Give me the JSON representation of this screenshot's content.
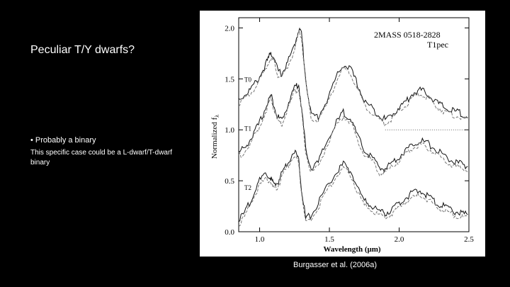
{
  "slide": {
    "title": "Peculiar T/Y dwarfs?",
    "bullet": "• Probably a binary",
    "subtext": "This specific case could be a L-dwarf/T-dwarf binary",
    "caption": "Burgasser et al. (2006a)"
  },
  "figure": {
    "object_label": "2MASS 0518-2828",
    "type_label": "T1pec",
    "ylabel": "Normalized f",
    "ylabel_sub": "λ",
    "xlabel": "Wavelength (μm)",
    "chart_data": {
      "type": "line",
      "xlim": [
        0.85,
        2.5
      ],
      "ylim": [
        0.0,
        2.1
      ],
      "x_ticks": [
        "1.0",
        "1.5",
        "2.0",
        "2.5"
      ],
      "y_ticks": [
        "0.0",
        "0.5",
        "1.0",
        "1.5",
        "2.0"
      ],
      "spectra": [
        {
          "name": "T0",
          "offset": 1.0,
          "x": [
            0.85,
            0.9,
            0.95,
            1.0,
            1.05,
            1.08,
            1.1,
            1.13,
            1.16,
            1.2,
            1.25,
            1.28,
            1.3,
            1.33,
            1.37,
            1.42,
            1.48,
            1.55,
            1.6,
            1.65,
            1.7,
            1.75,
            1.8,
            1.86,
            1.9,
            1.95,
            2.0,
            2.05,
            2.1,
            2.15,
            2.2,
            2.25,
            2.3,
            2.35,
            2.4,
            2.45,
            2.5
          ],
          "y": [
            0.3,
            0.35,
            0.42,
            0.52,
            0.66,
            0.75,
            0.72,
            0.58,
            0.55,
            0.66,
            0.82,
            0.99,
            0.95,
            0.5,
            0.14,
            0.13,
            0.28,
            0.52,
            0.64,
            0.6,
            0.45,
            0.28,
            0.22,
            0.14,
            0.1,
            0.15,
            0.22,
            0.28,
            0.36,
            0.39,
            0.36,
            0.29,
            0.24,
            0.2,
            0.18,
            0.16,
            0.13
          ]
        },
        {
          "name": "T1",
          "offset": 0.52,
          "x": [
            0.85,
            0.9,
            0.95,
            1.0,
            1.05,
            1.08,
            1.1,
            1.13,
            1.16,
            1.2,
            1.25,
            1.28,
            1.3,
            1.33,
            1.37,
            1.42,
            1.48,
            1.55,
            1.6,
            1.65,
            1.7,
            1.75,
            1.8,
            1.86,
            1.9,
            1.95,
            2.0,
            2.05,
            2.1,
            2.15,
            2.2,
            2.25,
            2.3,
            2.35,
            2.4,
            2.45,
            2.5
          ],
          "y": [
            0.25,
            0.32,
            0.42,
            0.55,
            0.72,
            0.82,
            0.74,
            0.6,
            0.58,
            0.72,
            0.9,
            0.92,
            0.7,
            0.3,
            0.1,
            0.16,
            0.36,
            0.55,
            0.65,
            0.6,
            0.42,
            0.28,
            0.22,
            0.1,
            0.1,
            0.16,
            0.22,
            0.28,
            0.34,
            0.38,
            0.35,
            0.3,
            0.25,
            0.2,
            0.16,
            0.14,
            0.12
          ]
        },
        {
          "name": "T2",
          "offset": 0.08,
          "x": [
            0.85,
            0.9,
            0.95,
            1.0,
            1.05,
            1.08,
            1.1,
            1.13,
            1.16,
            1.2,
            1.25,
            1.28,
            1.3,
            1.33,
            1.37,
            1.42,
            1.48,
            1.55,
            1.6,
            1.65,
            1.7,
            1.75,
            1.8,
            1.86,
            1.9,
            1.95,
            2.0,
            2.05,
            2.1,
            2.15,
            2.2,
            2.25,
            2.3,
            2.35,
            2.4,
            2.45,
            2.5
          ],
          "y": [
            0.03,
            0.12,
            0.28,
            0.42,
            0.48,
            0.45,
            0.38,
            0.4,
            0.5,
            0.6,
            0.72,
            0.62,
            0.35,
            0.05,
            0.08,
            0.2,
            0.36,
            0.5,
            0.58,
            0.52,
            0.36,
            0.22,
            0.18,
            0.12,
            0.1,
            0.14,
            0.2,
            0.26,
            0.3,
            0.32,
            0.28,
            0.22,
            0.18,
            0.15,
            0.12,
            0.1,
            0.08
          ]
        }
      ]
    }
  }
}
